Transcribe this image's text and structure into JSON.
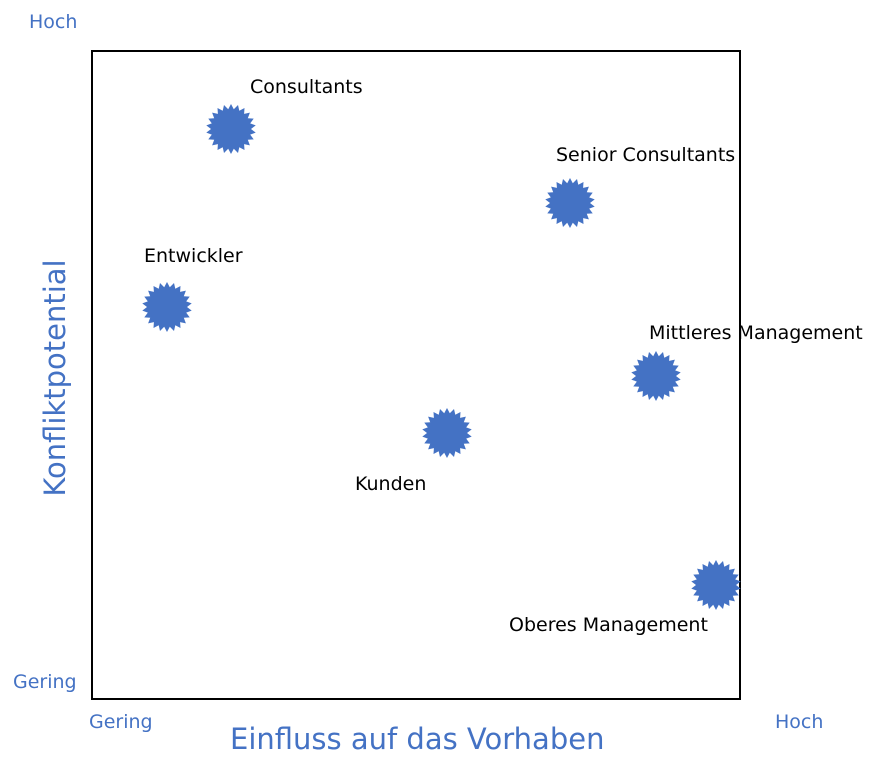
{
  "axes": {
    "x_title": "Einfluss auf das Vorhaben",
    "y_title": "Konfliktpotential",
    "x_low": "Gering",
    "x_high": "Hoch",
    "y_low": "Gering",
    "y_high": "Hoch"
  },
  "colors": {
    "accent": "#4472c4",
    "marker": "#4472c4",
    "border": "#000000"
  },
  "marker_icon": "starburst-icon",
  "stakeholders": [
    {
      "name": "Consultants"
    },
    {
      "name": "Senior Consultants"
    },
    {
      "name": "Entwickler"
    },
    {
      "name": "Mittleres Management"
    },
    {
      "name": "Kunden"
    },
    {
      "name": "Oberes Management"
    }
  ]
}
